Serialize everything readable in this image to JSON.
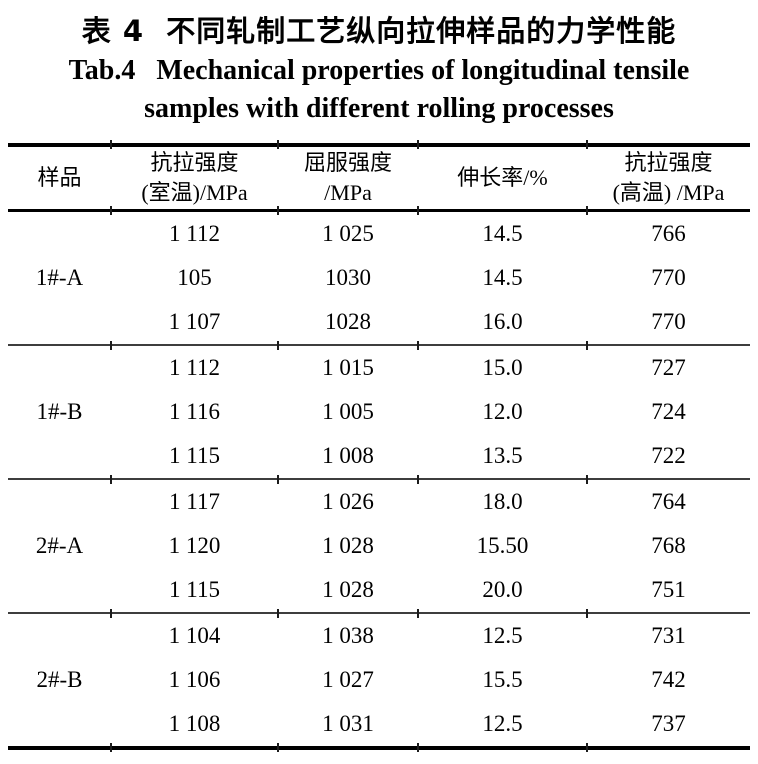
{
  "titles": {
    "zh": "表 4  不同轧制工艺纵向拉伸样品的力学性能",
    "en_line1": "Tab.4   Mechanical properties of longitudinal tensile",
    "en_line2": "samples with different rolling processes"
  },
  "table": {
    "columns": [
      {
        "line1": "样品",
        "line2": ""
      },
      {
        "line1": "抗拉强度",
        "line2": "(室温)/MPa"
      },
      {
        "line1": "屈服强度",
        "line2": "/MPa"
      },
      {
        "line1": "伸长率/%",
        "line2": ""
      },
      {
        "line1": "抗拉强度",
        "line2": "(高温) /MPa"
      }
    ],
    "groups": [
      {
        "sample": "1#-A",
        "rows": [
          [
            "1 112",
            "1 025",
            "14.5",
            "766"
          ],
          [
            "105",
            "1030",
            "14.5",
            "770"
          ],
          [
            "1 107",
            "1028",
            "16.0",
            "770"
          ]
        ]
      },
      {
        "sample": "1#-B",
        "rows": [
          [
            "1 112",
            "1 015",
            "15.0",
            "727"
          ],
          [
            "1 116",
            "1 005",
            "12.0",
            "724"
          ],
          [
            "1 115",
            "1 008",
            "13.5",
            "722"
          ]
        ]
      },
      {
        "sample": "2#-A",
        "rows": [
          [
            "1 117",
            "1 026",
            "18.0",
            "764"
          ],
          [
            "1 120",
            "1 028",
            "15.50",
            "768"
          ],
          [
            "1 115",
            "1 028",
            "20.0",
            "751"
          ]
        ]
      },
      {
        "sample": "2#-B",
        "rows": [
          [
            "1 104",
            "1 038",
            "12.5",
            "731"
          ],
          [
            "1 106",
            "1 027",
            "15.5",
            "742"
          ],
          [
            "1 108",
            "1 031",
            "12.5",
            "737"
          ]
        ]
      }
    ]
  },
  "colors": {
    "text": "#000000",
    "rule_heavy": "#000000",
    "rule_light": "#3d3d3d",
    "background": "#ffffff"
  }
}
